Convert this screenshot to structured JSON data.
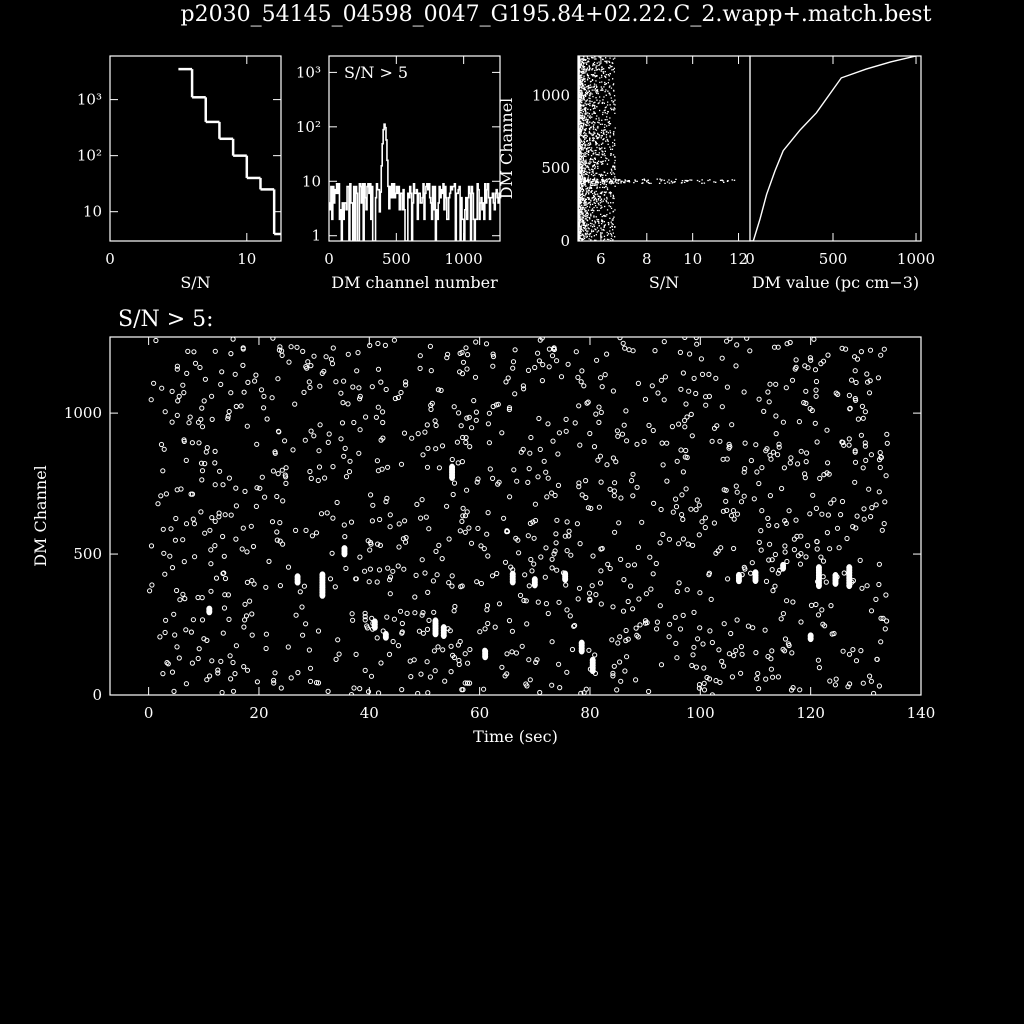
{
  "title": "p2030_54145_04598_0047_G195.84+02.22.C_2.wapp+.match.best",
  "colors": {
    "background": "#000000",
    "foreground": "#ffffff"
  },
  "chart_data": [
    {
      "id": "sn-histogram",
      "type": "bar",
      "step": true,
      "xlabel": "S/N",
      "ylabel": "",
      "xscale": "linear",
      "yscale": "log",
      "xlim": [
        0,
        12.5
      ],
      "ylim": [
        3,
        6000
      ],
      "xticks": [
        {
          "v": 0,
          "label": "0"
        },
        {
          "v": 10,
          "label": "10"
        }
      ],
      "yticks": [
        {
          "v": 10,
          "label": "10"
        },
        {
          "v": 100,
          "label": "10²"
        },
        {
          "v": 1000,
          "label": "10³"
        }
      ],
      "x": [
        5,
        6,
        7,
        8,
        9,
        10,
        11,
        12
      ],
      "values": [
        3500,
        1100,
        400,
        200,
        100,
        40,
        25,
        4
      ]
    },
    {
      "id": "dm-histogram",
      "type": "bar",
      "annotation": "S/N > 5",
      "xlabel": "DM channel number",
      "ylabel": "",
      "xscale": "linear",
      "yscale": "log",
      "xlim": [
        0,
        1270
      ],
      "ylim": [
        0.8,
        2000
      ],
      "xticks": [
        {
          "v": 0,
          "label": "0"
        },
        {
          "v": 500,
          "label": "500"
        },
        {
          "v": 1000,
          "label": "1000"
        }
      ],
      "yticks": [
        {
          "v": 1,
          "label": "1"
        },
        {
          "v": 10,
          "label": "10"
        },
        {
          "v": 100,
          "label": "10²"
        },
        {
          "v": 1000,
          "label": "10³"
        }
      ],
      "peak": {
        "dm_channel": 410,
        "count": 110
      },
      "baseline_range": [
        2,
        9
      ],
      "n_bins": 180
    },
    {
      "id": "dm-vs-sn",
      "type": "scatter",
      "xlabel": "S/N",
      "ylabel": "DM Channel",
      "xlim": [
        5,
        12.5
      ],
      "ylim": [
        0,
        1270
      ],
      "xticks": [
        {
          "v": 6,
          "label": "6"
        },
        {
          "v": 8,
          "label": "8"
        },
        {
          "v": 10,
          "label": "10"
        },
        {
          "v": 12,
          "label": "12"
        }
      ],
      "yticks": [
        {
          "v": 0,
          "label": "0"
        },
        {
          "v": 500,
          "label": "500"
        },
        {
          "v": 1000,
          "label": "1000"
        }
      ],
      "pulse_band": {
        "dm_channel": 410,
        "max_sn": 11.8
      }
    },
    {
      "id": "dm-mapping",
      "type": "line",
      "xlabel": "DM value  (pc cm−3)",
      "ylabel": "",
      "xlim": [
        0,
        1030
      ],
      "ylim": [
        0,
        1270
      ],
      "xticks": [
        {
          "v": 0,
          "label": "0"
        },
        {
          "v": 500,
          "label": "500"
        },
        {
          "v": 1000,
          "label": "1000"
        }
      ],
      "yticks": [],
      "x": [
        0,
        20,
        60,
        100,
        150,
        200,
        300,
        400,
        550,
        700,
        850,
        1000
      ],
      "y": [
        0,
        0,
        150,
        320,
        480,
        620,
        760,
        880,
        1120,
        1180,
        1230,
        1270
      ]
    },
    {
      "id": "time-vs-dm",
      "type": "scatter",
      "subtitle": "S/N > 5:",
      "xlabel": "Time (sec)",
      "ylabel": "DM Channel",
      "xlim": [
        -7,
        140
      ],
      "ylim": [
        0,
        1270
      ],
      "xticks": [
        {
          "v": 0,
          "label": "0"
        },
        {
          "v": 20,
          "label": "20"
        },
        {
          "v": 40,
          "label": "40"
        },
        {
          "v": 60,
          "label": "60"
        },
        {
          "v": 80,
          "label": "80"
        },
        {
          "v": 100,
          "label": "100"
        },
        {
          "v": 120,
          "label": "120"
        },
        {
          "v": 140,
          "label": "140"
        }
      ],
      "yticks": [
        {
          "v": 0,
          "label": "0"
        },
        {
          "v": 500,
          "label": "500"
        },
        {
          "v": 1000,
          "label": "1000"
        }
      ],
      "time_range": [
        0,
        134
      ],
      "n_background": 1250,
      "pulses": [
        {
          "t": 11,
          "dm": 300,
          "n": 2
        },
        {
          "t": 27,
          "dm": 410,
          "n": 3
        },
        {
          "t": 31.5,
          "dm": 390,
          "n": 9
        },
        {
          "t": 35.5,
          "dm": 510,
          "n": 3
        },
        {
          "t": 41,
          "dm": 250,
          "n": 3
        },
        {
          "t": 43,
          "dm": 210,
          "n": 2
        },
        {
          "t": 52,
          "dm": 240,
          "n": 6
        },
        {
          "t": 53.5,
          "dm": 225,
          "n": 4
        },
        {
          "t": 55,
          "dm": 790,
          "n": 5
        },
        {
          "t": 61,
          "dm": 145,
          "n": 3
        },
        {
          "t": 66,
          "dm": 415,
          "n": 4
        },
        {
          "t": 70,
          "dm": 400,
          "n": 3
        },
        {
          "t": 75.5,
          "dm": 420,
          "n": 3
        },
        {
          "t": 78.5,
          "dm": 170,
          "n": 4
        },
        {
          "t": 80.5,
          "dm": 105,
          "n": 5
        },
        {
          "t": 107,
          "dm": 415,
          "n": 3
        },
        {
          "t": 110,
          "dm": 420,
          "n": 4
        },
        {
          "t": 115,
          "dm": 455,
          "n": 2
        },
        {
          "t": 120,
          "dm": 205,
          "n": 2
        },
        {
          "t": 121.5,
          "dm": 420,
          "n": 8
        },
        {
          "t": 124.5,
          "dm": 410,
          "n": 4
        },
        {
          "t": 127,
          "dm": 420,
          "n": 8
        }
      ]
    }
  ]
}
